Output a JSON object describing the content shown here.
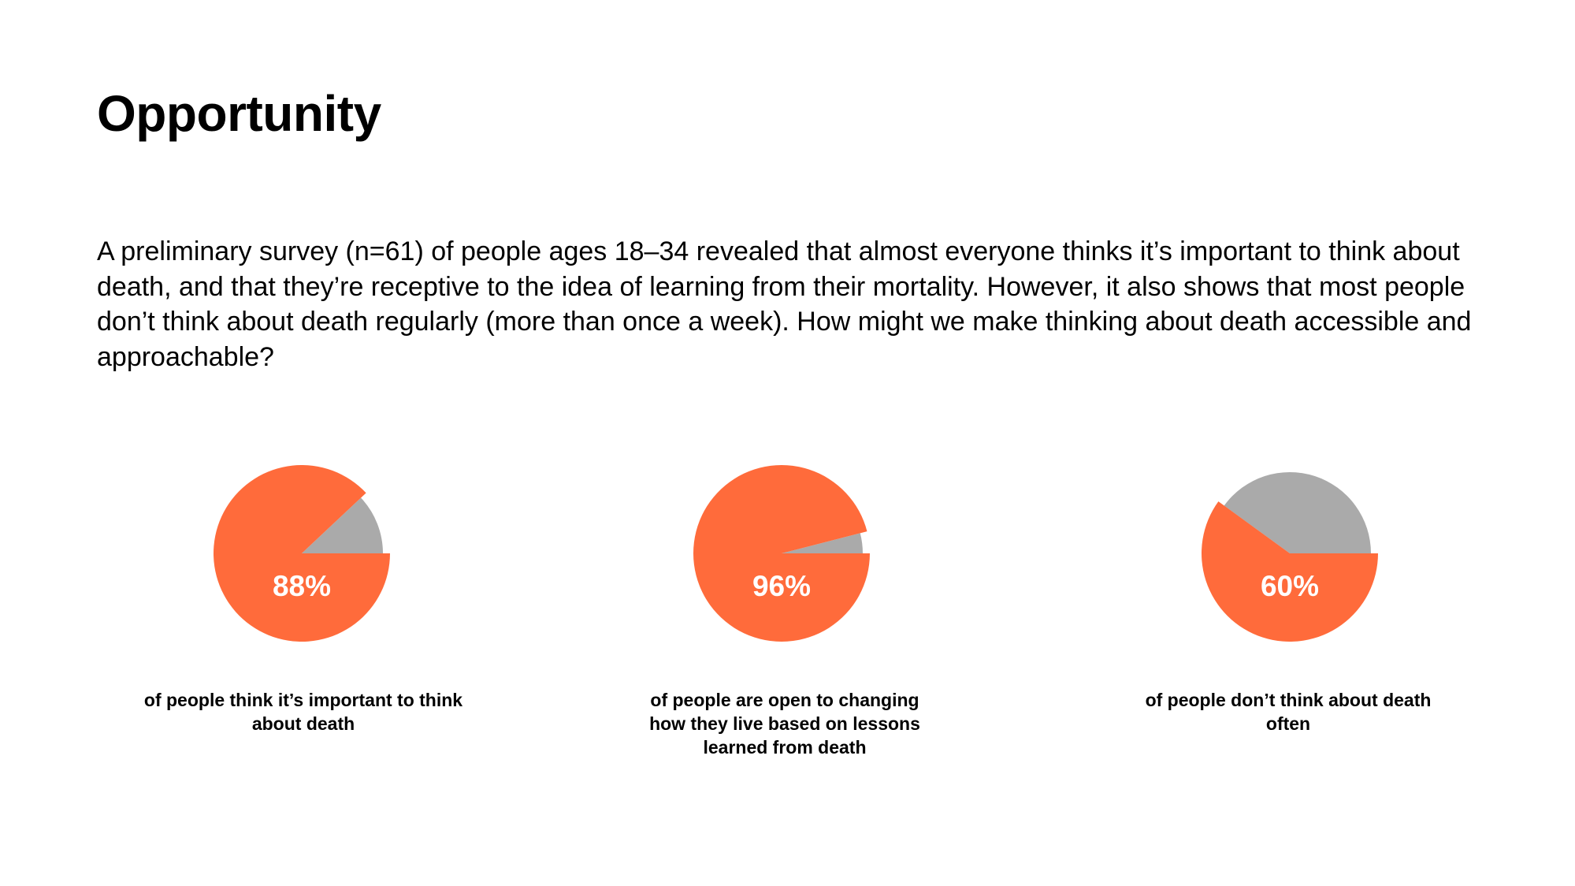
{
  "slide": {
    "title": "Opportunity",
    "intro": "A preliminary survey (n=61) of people ages 18–34 revealed that almost everyone thinks it’s important to think about death, and that they’re receptive to the idea of learning from their mortality. However, it also shows that most people don’t think about death regularly (more than once a week). How might we make thinking about death accessible and approachable?"
  },
  "colors": {
    "highlight": "#FF6B3B",
    "remainder": "#AAAAAA",
    "label_on_slice": "#FFFFFF",
    "text": "#000000"
  },
  "chart_data": [
    {
      "type": "pie",
      "slices": [
        {
          "label": "88%",
          "value": 88
        },
        {
          "value": 12
        }
      ],
      "caption": "of people think it’s important to think about death"
    },
    {
      "type": "pie",
      "slices": [
        {
          "label": "96%",
          "value": 96
        },
        {
          "value": 4
        }
      ],
      "caption": "of people are open to changing how they live based on lessons learned from death"
    },
    {
      "type": "pie",
      "slices": [
        {
          "label": "60%",
          "value": 60
        },
        {
          "value": 40
        }
      ],
      "caption": "of people don’t think about death often"
    }
  ]
}
